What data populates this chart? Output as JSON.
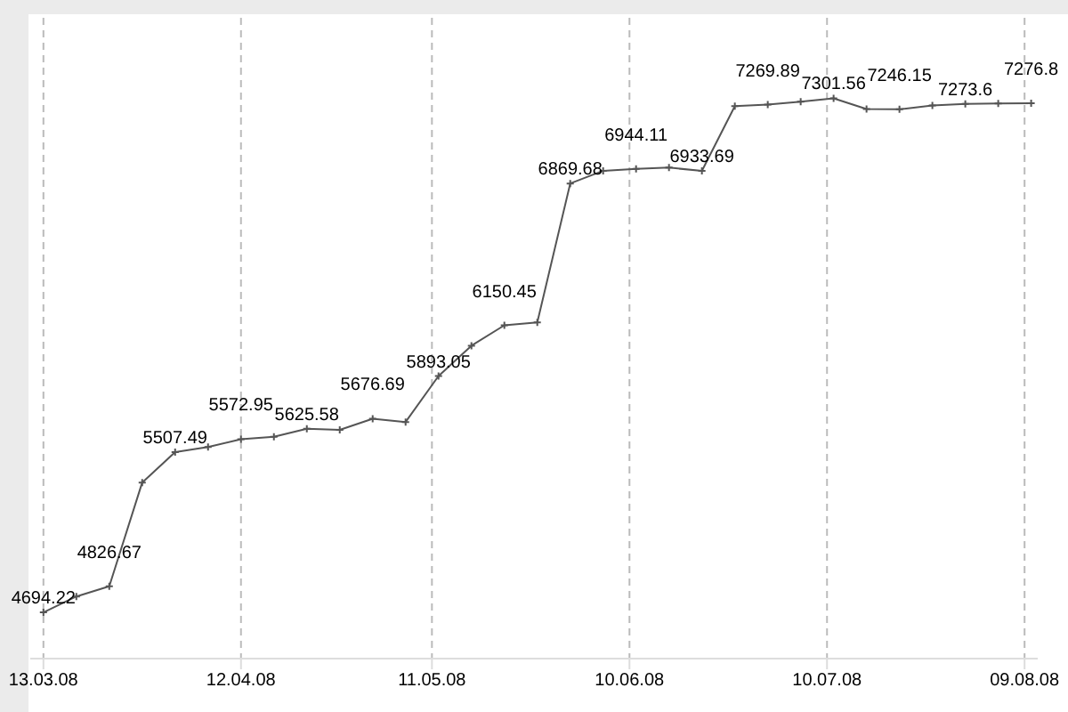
{
  "chart_data": {
    "type": "line",
    "x": [
      "2008-03-13",
      "2008-03-18",
      "2008-03-23",
      "2008-03-28",
      "2008-04-02",
      "2008-04-07",
      "2008-04-12",
      "2008-04-17",
      "2008-04-22",
      "2008-04-27",
      "2008-05-02",
      "2008-05-07",
      "2008-05-12",
      "2008-05-17",
      "2008-05-22",
      "2008-05-27",
      "2008-06-01",
      "2008-06-06",
      "2008-06-11",
      "2008-06-16",
      "2008-06-21",
      "2008-06-26",
      "2008-07-01",
      "2008-07-06",
      "2008-07-11",
      "2008-07-16",
      "2008-07-21",
      "2008-07-26",
      "2008-07-31",
      "2008-08-05",
      "2008-08-10"
    ],
    "series": [
      {
        "color": "#555555",
        "values": [
          4694.22,
          4775,
          4826.67,
          5353,
          5507.49,
          5533,
          5572.95,
          5585,
          5625.58,
          5620,
          5676.69,
          5660,
          5893.05,
          6047,
          6150.45,
          6165,
          6869.68,
          6934,
          6944.11,
          6950,
          6933.69,
          7262,
          7269.89,
          7285,
          7301.56,
          7247,
          7246.15,
          7265,
          7273.6,
          7275,
          7276.8
        ],
        "value_labels": [
          "4694.22",
          null,
          "4826.67",
          null,
          "5507.49",
          null,
          "5572.95",
          null,
          "5625.58",
          null,
          "5676.69",
          null,
          "5893.05",
          null,
          "6150.45",
          null,
          "6869.68",
          null,
          "6944.11",
          null,
          "6933.69",
          null,
          "7269.89",
          null,
          "7301.56",
          null,
          "7246.15",
          null,
          "7273.6",
          null,
          "7276.8"
        ]
      }
    ],
    "xlim": [
      "2008-03-11",
      "2008-08-11"
    ],
    "xticks": [
      {
        "value": "2008-03-13",
        "label": "13.03.08"
      },
      {
        "value": "2008-04-12",
        "label": "12.04.08"
      },
      {
        "value": "2008-05-11",
        "label": "11.05.08"
      },
      {
        "value": "2008-06-10",
        "label": "10.06.08"
      },
      {
        "value": "2008-07-10",
        "label": "10.07.08"
      },
      {
        "value": "2008-08-09",
        "label": "09.08.08"
      }
    ],
    "ylim": [
      4460,
      7710
    ],
    "tick_labels": "x",
    "grid": "x",
    "marker": "cross",
    "line_style": "solid",
    "legend": false
  }
}
